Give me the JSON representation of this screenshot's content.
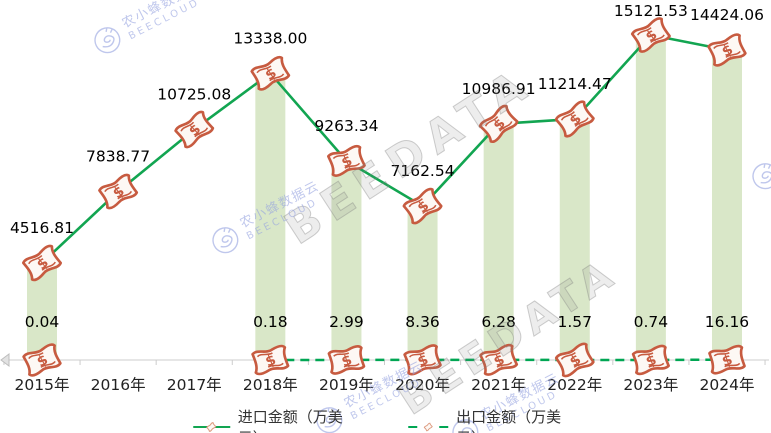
{
  "watermark": {
    "brand_cn": "农小蜂数据云",
    "brand_en": "BEECLOUD",
    "big_text": "BEEDATA"
  },
  "legend": {
    "items": [
      {
        "label": "进口金额（万美元）",
        "marker": "banknote-icon",
        "line_style": "solid"
      },
      {
        "label": "出口金额（万美元）",
        "marker": "banknote-icon",
        "line_style": "dashed"
      }
    ]
  },
  "chart_data": {
    "type": "line",
    "title": "",
    "xlabel": "",
    "ylabel": "",
    "categories": [
      "2015年",
      "2016年",
      "2017年",
      "2018年",
      "2019年",
      "2020年",
      "2021年",
      "2022年",
      "2023年",
      "2024年"
    ],
    "series": [
      {
        "name": "进口金额（万美元）",
        "line_style": "solid",
        "marker": "banknote-icon",
        "values": [
          4516.81,
          7838.77,
          10725.08,
          13338.0,
          9263.34,
          7162.54,
          10986.91,
          11214.47,
          15121.53,
          14424.06
        ]
      },
      {
        "name": "出口金额（万美元）",
        "line_style": "dashed",
        "marker": "banknote-icon",
        "values": [
          0.04,
          null,
          null,
          0.18,
          2.99,
          8.36,
          6.28,
          1.57,
          0.74,
          16.16
        ]
      }
    ],
    "value_labels": true,
    "highlighted_columns": [
      0,
      3,
      4,
      5,
      6,
      7,
      8,
      9
    ],
    "ylim": [
      0,
      15500
    ],
    "grid": false,
    "legend_position": "bottom"
  },
  "colors": {
    "import_line": "#12a551",
    "export_line": "#00a653",
    "column_fill": "#d9e7c8",
    "marker_stroke": "#c75b40",
    "marker_fill": "#fdf8f4",
    "value_label": "#000000",
    "axis_line": "#cccccc",
    "axis_label": "#222222",
    "legend_text": "#333333",
    "legend_marker_stroke": "#dd9b80",
    "watermark_blue": "#96a3e0"
  }
}
